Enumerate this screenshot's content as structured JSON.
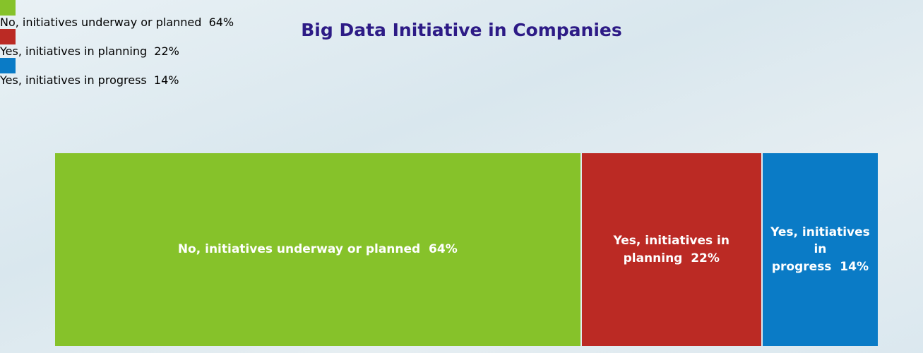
{
  "chart_data": {
    "type": "stacked-bar-100",
    "title": "Big Data Initiative in Companies",
    "series": [
      {
        "name": "No, initiatives underway or planned",
        "color": "#86c22a",
        "values": [
          64
        ],
        "value_labels": [
          "64%"
        ]
      },
      {
        "name": "Yes, initiatives in planning",
        "color": "#bb2a24",
        "values": [
          22
        ],
        "value_labels": [
          "22%"
        ]
      },
      {
        "name": "Yes, initiatives in progress",
        "color": "#0a7bc6",
        "values": [
          14
        ],
        "value_labels": [
          "14%"
        ]
      }
    ]
  }
}
